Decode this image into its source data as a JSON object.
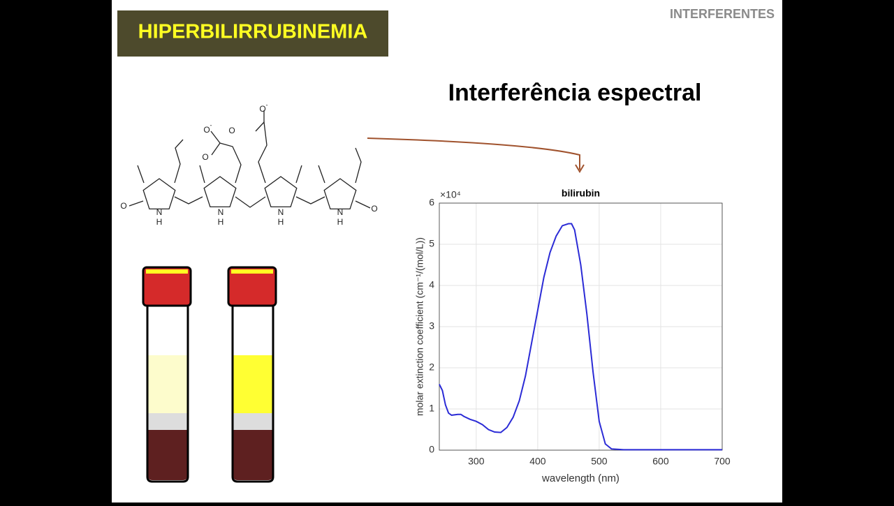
{
  "header": {
    "title": "HIPERBILIRRUBINEMIA",
    "section": "INTERFERENTES"
  },
  "subtitle": "Interferência espectral",
  "molecule_labels": [
    "O",
    "N",
    "H",
    "N",
    "H",
    "N",
    "H",
    "N",
    "H",
    "O",
    "O",
    "-",
    "O",
    "O",
    "O",
    "-"
  ],
  "chart_data": {
    "type": "line",
    "title": "bilirubin",
    "x_label": "wavelength (nm)",
    "y_label": "molar extinction coefficient (cm⁻¹/(mol/L))",
    "y_multiplier": "×10⁴",
    "color": "#2b2bd6",
    "x": [
      240,
      245,
      250,
      255,
      260,
      270,
      275,
      280,
      290,
      300,
      310,
      320,
      330,
      340,
      350,
      360,
      370,
      380,
      390,
      400,
      410,
      420,
      430,
      440,
      450,
      455,
      460,
      470,
      480,
      490,
      500,
      510,
      520,
      540,
      600,
      650,
      700
    ],
    "values": [
      1.6,
      1.45,
      1.1,
      0.9,
      0.85,
      0.87,
      0.87,
      0.82,
      0.75,
      0.7,
      0.62,
      0.5,
      0.44,
      0.43,
      0.55,
      0.8,
      1.2,
      1.8,
      2.6,
      3.4,
      4.2,
      4.8,
      5.2,
      5.45,
      5.5,
      5.5,
      5.35,
      4.5,
      3.3,
      1.9,
      0.7,
      0.15,
      0.03,
      0.01,
      0.01,
      0.01,
      0.01
    ],
    "xlim": [
      240,
      700
    ],
    "xticks": [
      300,
      400,
      500,
      600,
      700
    ],
    "ylim": [
      0,
      6
    ],
    "yticks": [
      0,
      1,
      2,
      3,
      4,
      5,
      6
    ],
    "grid": true
  }
}
